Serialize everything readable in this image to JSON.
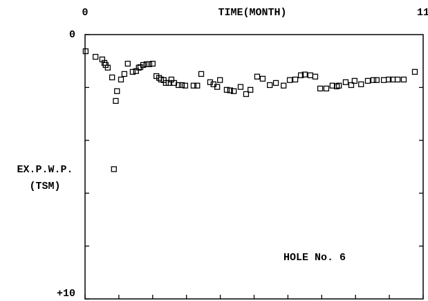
{
  "chart_data": {
    "type": "scatter",
    "x_label": "TIME(MONTH)",
    "y_label": [
      "EX.P.W.P.",
      "(TSM)"
    ],
    "annotation": "HOLE No. 6",
    "xlim": [
      0,
      11
    ],
    "xticks": [
      0,
      11
    ],
    "x_minor_ticks": [
      1.1,
      2.2,
      3.3,
      4.4,
      5.5,
      6.6,
      7.7,
      8.8,
      9.9
    ],
    "ylim": [
      0,
      10
    ],
    "yticks": [
      0,
      {
        "value": 10,
        "label": "+10"
      }
    ],
    "y_minor_ticks": [
      2,
      4,
      6,
      8
    ],
    "y_inverted": true,
    "color": "#000000",
    "x": [
      0.02,
      0.34,
      0.56,
      0.63,
      0.67,
      0.74,
      0.88,
      1.0,
      1.04,
      0.94,
      1.17,
      1.28,
      1.39,
      1.55,
      1.66,
      1.75,
      1.8,
      1.89,
      2.0,
      2.09,
      2.2,
      2.32,
      2.41,
      2.47,
      2.56,
      2.63,
      2.72,
      2.81,
      2.9,
      3.04,
      3.15,
      3.26,
      3.53,
      3.65,
      3.78,
      4.07,
      4.18,
      4.3,
      4.39,
      4.61,
      4.72,
      4.84,
      5.06,
      5.24,
      5.38,
      5.6,
      5.78,
      6.01,
      6.21,
      6.46,
      6.66,
      6.84,
      7.02,
      7.15,
      7.33,
      7.49,
      7.65,
      7.85,
      8.05,
      8.19,
      8.26,
      8.48,
      8.66,
      8.77,
      8.98,
      9.2,
      9.38,
      9.49,
      9.72,
      9.88,
      10.01,
      10.17,
      10.37,
      10.73
    ],
    "values": [
      0.63,
      0.84,
      0.94,
      1.07,
      1.15,
      1.25,
      1.62,
      2.51,
      2.14,
      5.09,
      1.7,
      1.49,
      1.1,
      1.41,
      1.38,
      1.25,
      1.23,
      1.15,
      1.12,
      1.12,
      1.1,
      1.57,
      1.64,
      1.7,
      1.72,
      1.83,
      1.83,
      1.7,
      1.83,
      1.91,
      1.91,
      1.93,
      1.93,
      1.93,
      1.49,
      1.8,
      1.88,
      1.98,
      1.72,
      2.09,
      2.11,
      2.14,
      1.98,
      2.25,
      2.09,
      1.59,
      1.67,
      1.91,
      1.83,
      1.93,
      1.72,
      1.7,
      1.54,
      1.51,
      1.54,
      1.59,
      2.04,
      2.04,
      1.93,
      1.96,
      1.93,
      1.8,
      1.91,
      1.75,
      1.88,
      1.75,
      1.72,
      1.72,
      1.72,
      1.7,
      1.7,
      1.7,
      1.7,
      1.41
    ]
  }
}
